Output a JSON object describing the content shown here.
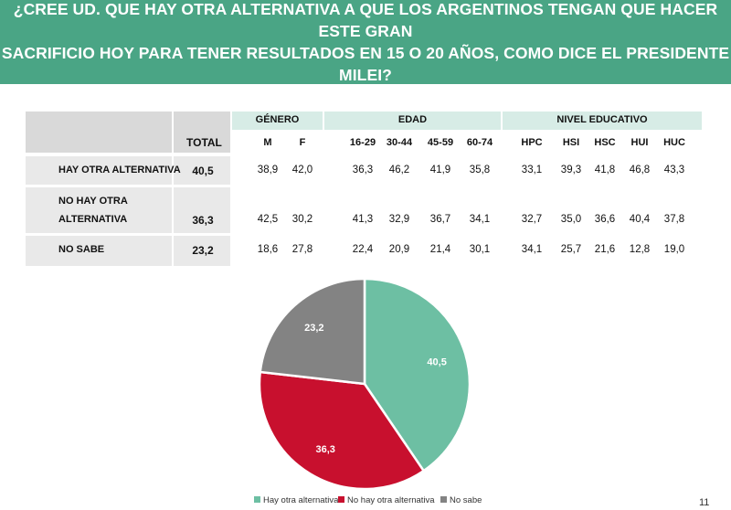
{
  "title": {
    "line1": "¿CREE UD. QUE HAY OTRA ALTERNATIVA A QUE LOS ARGENTINOS TENGAN QUE HACER ESTE GRAN",
    "line2": "SACRIFICIO HOY PARA TENER RESULTADOS EN 15 O 20 AÑOS, COMO DICE EL PRESIDENTE MILEI?"
  },
  "table": {
    "group_headers": {
      "genero": "GÉNERO",
      "edad": "EDAD",
      "nivel": "NIVEL EDUCATIVO"
    },
    "total_header": "TOTAL",
    "columns": [
      "M",
      "F",
      "16-29",
      "30-44",
      "45-59",
      "60-74",
      "HPC",
      "HSI",
      "HSC",
      "HUI",
      "HUC"
    ],
    "rows": [
      {
        "label": "HAY OTRA ALTERNATIVA",
        "total": "40,5",
        "values": [
          "38,9",
          "42,0",
          "36,3",
          "46,2",
          "41,9",
          "35,8",
          "33,1",
          "39,3",
          "41,8",
          "46,8",
          "43,3"
        ]
      },
      {
        "label_line1": "NO HAY OTRA",
        "label_line2": "ALTERNATIVA",
        "total": "36,3",
        "values": [
          "42,5",
          "30,2",
          "41,3",
          "32,9",
          "36,7",
          "34,1",
          "32,7",
          "35,0",
          "36,6",
          "40,4",
          "37,8"
        ]
      },
      {
        "label": "NO SABE",
        "total": "23,2",
        "values": [
          "18,6",
          "27,8",
          "22,4",
          "20,9",
          "21,4",
          "30,1",
          "34,1",
          "25,7",
          "21,6",
          "12,8",
          "19,0"
        ]
      }
    ]
  },
  "chart_data": {
    "type": "pie",
    "title": "",
    "categories": [
      "Hay otra alternativa",
      "No hay otra alternativa",
      "No sabe"
    ],
    "values": [
      40.5,
      36.3,
      23.2
    ],
    "labels": [
      "40,5",
      "36,3",
      "23,2"
    ],
    "colors": [
      "#6dbfa3",
      "#c8102e",
      "#838383"
    ],
    "legend_position": "bottom"
  },
  "page_number": "11"
}
